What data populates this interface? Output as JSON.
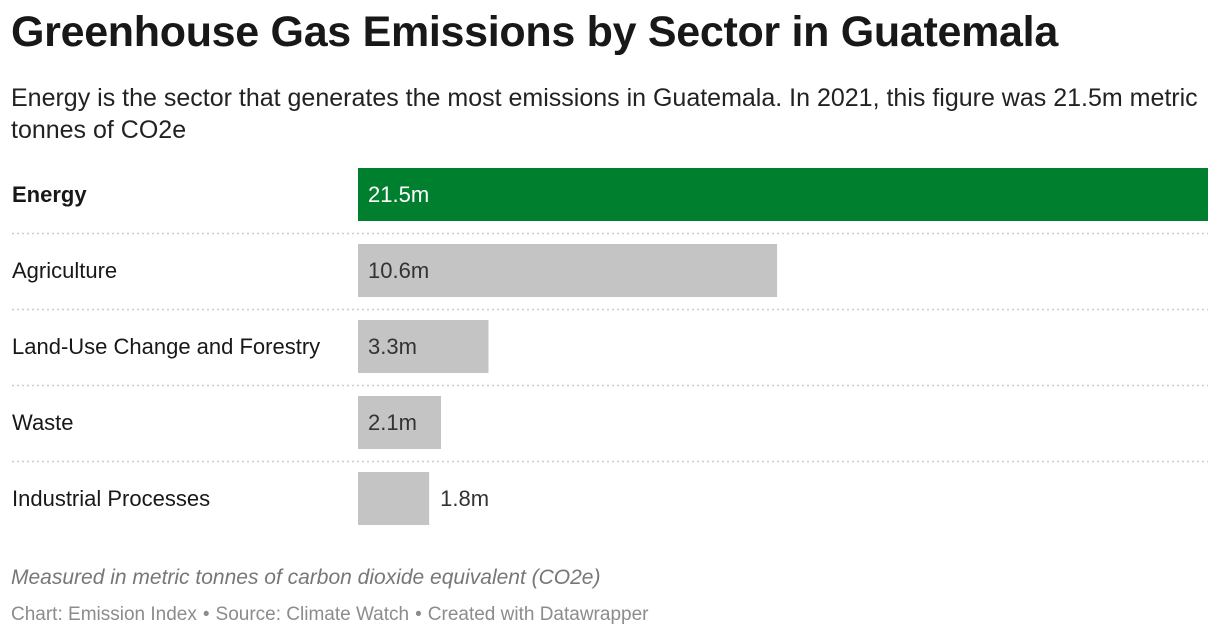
{
  "title": "Greenhouse Gas Emissions by Sector in Guatemala",
  "subtitle": "Energy is the sector that generates the most emissions in Guatemala. In 2021, this figure was 21.5m metric tonnes of CO2e",
  "notes": "Measured in metric tonnes of carbon dioxide equivalent (CO2e)",
  "footer": {
    "chart": "Chart: Emission Index",
    "source": "Source: Climate Watch",
    "created": "Created with Datawrapper",
    "separator": "•"
  },
  "colors": {
    "highlight": "#00802f",
    "default": "#c4c4c4",
    "label_on_highlight": "#ffffff",
    "label_default": "#333333",
    "divider": "#cccccc"
  },
  "chart_data": {
    "type": "bar",
    "orientation": "horizontal",
    "categories": [
      "Energy",
      "Agriculture",
      "Land-Use Change and Forestry",
      "Waste",
      "Industrial Processes"
    ],
    "values": [
      21.5,
      10.6,
      3.3,
      2.1,
      1.8
    ],
    "value_labels": [
      "21.5m",
      "10.6m",
      "3.3m",
      "2.1m",
      "1.8m"
    ],
    "highlighted": [
      "Energy"
    ],
    "unit": "metric tonnes of CO2e",
    "xlim": [
      0,
      21.5
    ],
    "grid": false,
    "legend": "none"
  }
}
